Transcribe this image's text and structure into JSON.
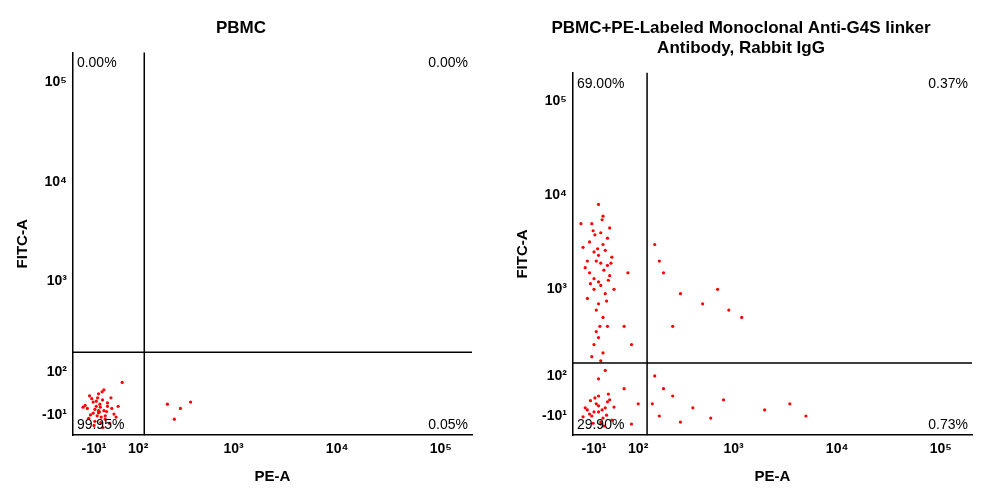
{
  "chart_data": [
    {
      "type": "scatter",
      "title": "PBMC",
      "x_label": "PE-A",
      "y_label": "FITC-A",
      "color": "#ff0000",
      "marker": "circle",
      "grid": false,
      "xlim": [
        -60,
        200000
      ],
      "ylim": [
        -60,
        200000
      ],
      "xticks": [
        {
          "value": -10,
          "label": "-10¹"
        },
        {
          "value": 100,
          "label": "10²"
        },
        {
          "value": 1000,
          "label": "10³"
        },
        {
          "value": 10000,
          "label": "10⁴"
        },
        {
          "value": 100000,
          "label": "10⁵"
        }
      ],
      "yticks": [
        {
          "value": -10,
          "label": "-10¹"
        },
        {
          "value": 100,
          "label": "10²"
        },
        {
          "value": 1000,
          "label": "10³"
        },
        {
          "value": 10000,
          "label": "10⁴"
        },
        {
          "value": 100000,
          "label": "10⁵"
        }
      ],
      "gates": {
        "x": 120,
        "y": 180
      },
      "quadrants": [
        {
          "position": "upper_left",
          "value": 0.0,
          "label": "0.00%"
        },
        {
          "position": "upper_right",
          "value": 0.0,
          "label": "0.00%"
        },
        {
          "position": "lower_left",
          "value": 99.95,
          "label": "99.95%"
        },
        {
          "position": "lower_right",
          "value": 0.05,
          "label": "0.05%"
        }
      ],
      "x": [
        -25,
        -18,
        -12,
        -8,
        -5,
        -2,
        0,
        3,
        6,
        9,
        12,
        15,
        20,
        25,
        30,
        -30,
        -20,
        -10,
        0,
        10,
        20,
        35,
        45,
        -15,
        5,
        -5,
        15,
        8,
        -8,
        2,
        40,
        -35,
        28,
        -22,
        12,
        0,
        4,
        -3,
        18,
        -12,
        220,
        300,
        380,
        260,
        55
      ],
      "y": [
        5,
        -10,
        20,
        -25,
        10,
        30,
        -5,
        15,
        -15,
        25,
        0,
        -20,
        10,
        -30,
        5,
        12,
        35,
        -35,
        40,
        -40,
        18,
        -8,
        10,
        28,
        -28,
        22,
        -12,
        45,
        3,
        -3,
        -15,
        8,
        30,
        -18,
        50,
        0,
        8,
        -12,
        -2,
        -6,
        15,
        5,
        20,
        -20,
        70
      ]
    },
    {
      "type": "scatter",
      "title": [
        "PBMC+PE-Labeled Monoclonal Anti-G4S linker",
        "Antibody, Rabbit IgG"
      ],
      "x_label": "PE-A",
      "y_label": "FITC-A",
      "color": "#ff0000",
      "marker": "circle",
      "grid": false,
      "xlim": [
        -60,
        200000
      ],
      "ylim": [
        -60,
        200000
      ],
      "xticks": [
        {
          "value": -10,
          "label": "-10¹"
        },
        {
          "value": 100,
          "label": "10²"
        },
        {
          "value": 1000,
          "label": "10³"
        },
        {
          "value": 10000,
          "label": "10⁴"
        },
        {
          "value": 100000,
          "label": "10⁵"
        }
      ],
      "yticks": [
        {
          "value": -10,
          "label": "-10¹"
        },
        {
          "value": 100,
          "label": "10²"
        },
        {
          "value": 1000,
          "label": "10³"
        },
        {
          "value": 10000,
          "label": "10⁴"
        },
        {
          "value": 100000,
          "label": "10⁵"
        }
      ],
      "gates": {
        "x": 130,
        "y": 150
      },
      "quadrants": [
        {
          "position": "upper_left",
          "value": 69.0,
          "label": "69.00%"
        },
        {
          "position": "upper_right",
          "value": 0.37,
          "label": "0.37%"
        },
        {
          "position": "lower_left",
          "value": 29.9,
          "label": "29.90%"
        },
        {
          "position": "lower_right",
          "value": 0.73,
          "label": "0.73%"
        }
      ],
      "x": [
        -20,
        -10,
        0,
        10,
        20,
        -25,
        5,
        15,
        -5,
        25,
        -15,
        0,
        10,
        -10,
        30,
        -30,
        20,
        5,
        -5,
        15,
        0,
        -20,
        10,
        25,
        -10,
        5,
        35,
        -35,
        0,
        12,
        -8,
        18,
        -18,
        8,
        -2,
        22,
        -25,
        3,
        -12,
        28,
        0,
        10,
        -10,
        5,
        -5,
        15,
        0,
        20,
        -15,
        -25,
        -15,
        -5,
        5,
        15,
        25,
        -20,
        0,
        10,
        20,
        -10,
        30,
        -30,
        5,
        -8,
        12,
        0,
        18,
        -18,
        8,
        35,
        -35,
        0,
        22,
        -12,
        150,
        180,
        250,
        400,
        600,
        800,
        2000,
        3500,
        5000,
        200,
        160,
        300,
        160,
        200,
        300,
        500,
        900,
        1200,
        250,
        180,
        700,
        60,
        80,
        -40,
        70,
        60,
        80,
        100
      ],
      "y": [
        1500,
        2500,
        1200,
        3000,
        1800,
        800,
        4000,
        900,
        2000,
        1400,
        5000,
        700,
        6000,
        1000,
        2200,
        1700,
        3500,
        1100,
        600,
        2600,
        8000,
        3200,
        500,
        4500,
        1300,
        1900,
        1000,
        2800,
        2300,
        1600,
        3800,
        750,
        1150,
        5500,
        2700,
        1250,
        2000,
        400,
        4200,
        1900,
        300,
        200,
        250,
        160,
        350,
        120,
        90,
        400,
        180,
        5,
        -10,
        20,
        -25,
        10,
        30,
        -5,
        15,
        -15,
        25,
        0,
        -20,
        10,
        -30,
        35,
        -35,
        40,
        -8,
        28,
        5,
        12,
        -12,
        0,
        45,
        -28,
        20,
        -10,
        40,
        10,
        -15,
        30,
        5,
        20,
        -10,
        60,
        100,
        -25,
        3000,
        1500,
        900,
        700,
        600,
        500,
        400,
        2000,
        1000,
        400,
        250,
        5000,
        1500,
        60,
        -30,
        20
      ]
    }
  ]
}
